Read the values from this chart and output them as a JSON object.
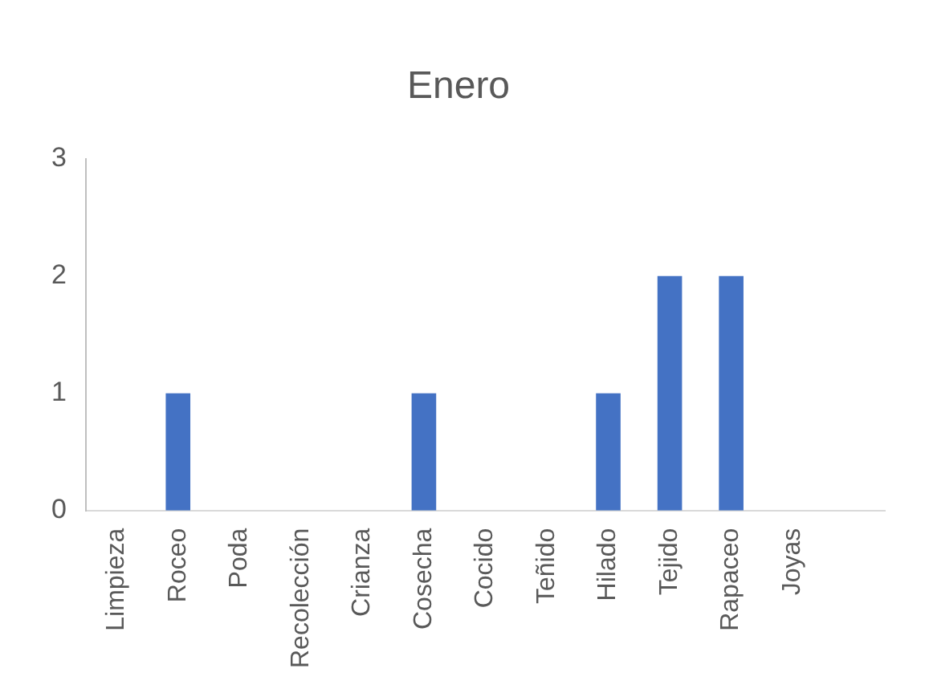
{
  "chart_data": {
    "type": "bar",
    "title": "Enero",
    "categories": [
      "Limpieza",
      "Roceo",
      "Poda",
      "Recolección",
      "Crianza",
      "Cosecha",
      "Cocido",
      "Teñido",
      "Hilado",
      "Tejido",
      "Rapaceo",
      "Joyas",
      null
    ],
    "values": [
      0,
      1,
      0,
      0,
      0,
      1,
      0,
      0,
      1,
      2,
      2,
      0,
      null
    ],
    "color": "#4472c4",
    "ylim": [
      0,
      3
    ],
    "yticks": [
      0,
      1,
      2,
      3
    ],
    "grid": false,
    "legend": false
  }
}
